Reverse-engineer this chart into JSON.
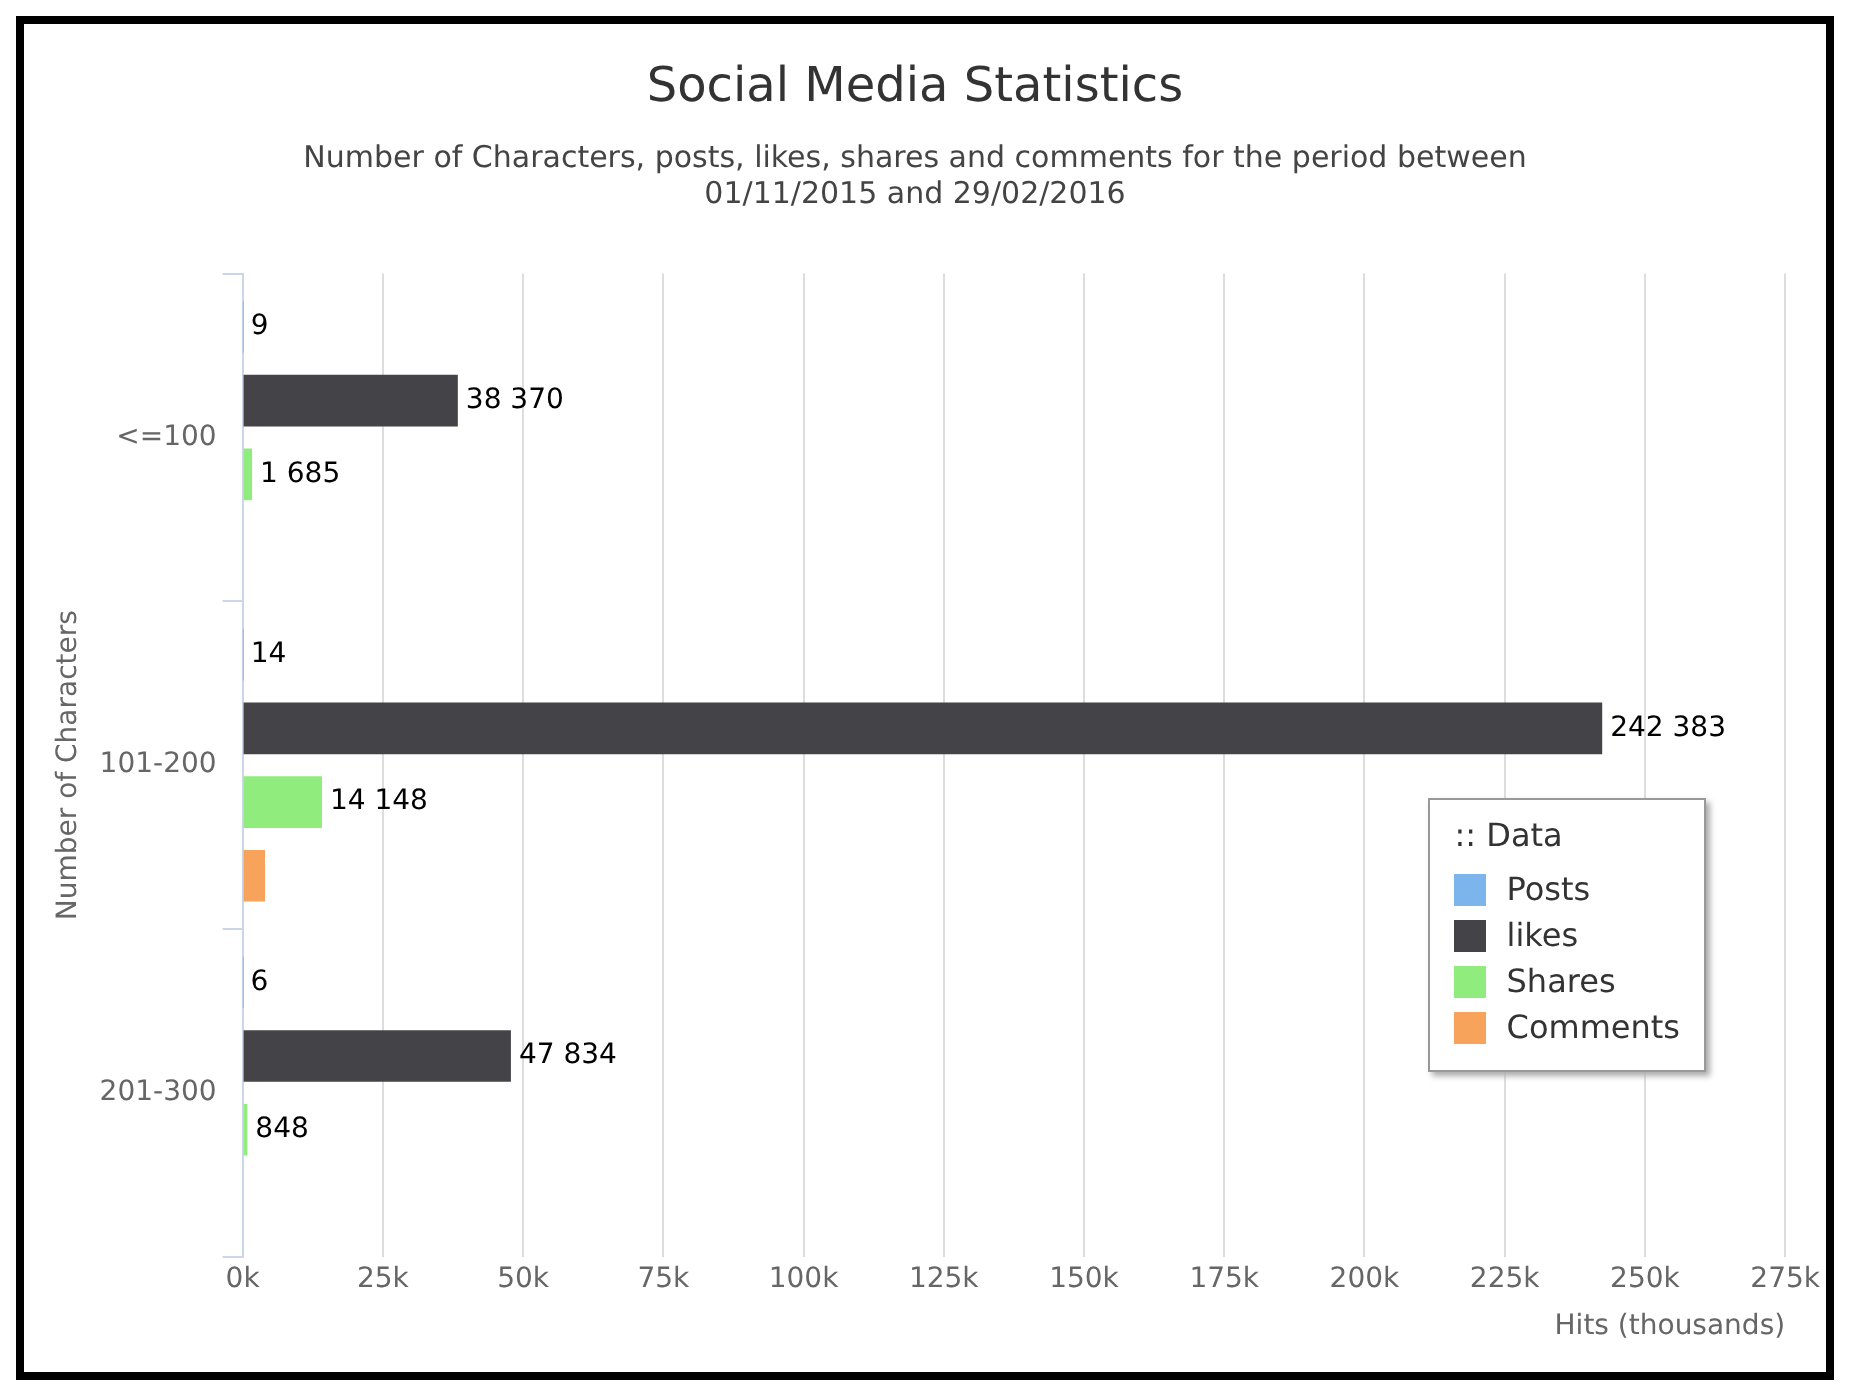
{
  "chart_data": {
    "type": "bar",
    "orientation": "horizontal",
    "title": "Social Media Statistics",
    "subtitle": "Number of Characters, posts, likes, shares and comments for the period between 01/11/2015 and 29/02/2016",
    "xlabel": "Hits (thousands)",
    "ylabel": "Number of Characters",
    "legend_title": ":: Data",
    "categories": [
      "<=100",
      "101-200",
      "201-300"
    ],
    "series": [
      {
        "name": "Posts",
        "color": "#7cb5ec",
        "values": [
          9,
          14,
          6
        ],
        "value_labels": [
          "9",
          "14",
          "6"
        ]
      },
      {
        "name": "likes",
        "color": "#434348",
        "values": [
          38370,
          242383,
          47834
        ],
        "value_labels": [
          "38 370",
          "242 383",
          "47 834"
        ]
      },
      {
        "name": "Shares",
        "color": "#90ed7d",
        "values": [
          1685,
          14148,
          848
        ],
        "value_labels": [
          "1 685",
          "14 148",
          "848"
        ]
      },
      {
        "name": "Comments",
        "color": "#f7a35c",
        "values": [
          null,
          4000,
          null
        ]
      }
    ],
    "xlim": [
      0,
      275000
    ],
    "xticks": [
      {
        "value": 0,
        "label": "0k"
      },
      {
        "value": 25000,
        "label": "25k"
      },
      {
        "value": 50000,
        "label": "50k"
      },
      {
        "value": 75000,
        "label": "75k"
      },
      {
        "value": 100000,
        "label": "100k"
      },
      {
        "value": 125000,
        "label": "125k"
      },
      {
        "value": 150000,
        "label": "150k"
      },
      {
        "value": 175000,
        "label": "175k"
      },
      {
        "value": 200000,
        "label": "200k"
      },
      {
        "value": 225000,
        "label": "225k"
      },
      {
        "value": 250000,
        "label": "250k"
      },
      {
        "value": 275000,
        "label": "275k"
      }
    ],
    "grid": "x",
    "legend": "bottom right"
  }
}
